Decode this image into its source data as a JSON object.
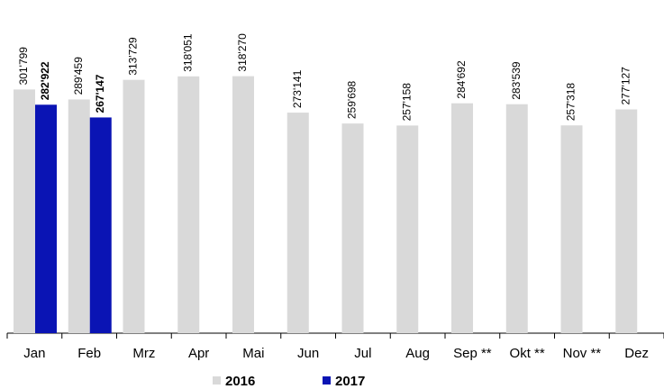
{
  "chart_data": {
    "type": "bar",
    "categories": [
      "Jan",
      "Feb",
      "Mrz",
      "Apr",
      "Mai",
      "Jun",
      "Jul",
      "Aug",
      "Sep **",
      "Okt **",
      "Nov **",
      "Dez"
    ],
    "series": [
      {
        "name": "2016",
        "color": "#d9d9d9",
        "values": [
          301799,
          289459,
          313729,
          318051,
          318270,
          273141,
          259698,
          257158,
          284692,
          283539,
          257318,
          277127
        ],
        "value_labels": [
          "301'799",
          "289'459",
          "313'729",
          "318'051",
          "318'270",
          "273'141",
          "259'698",
          "257'158",
          "284'692",
          "283'539",
          "257'318",
          "277'127"
        ]
      },
      {
        "name": "2017",
        "color": "#0a14b4",
        "values": [
          282922,
          267147,
          null,
          null,
          null,
          null,
          null,
          null,
          null,
          null,
          null,
          null
        ],
        "value_labels": [
          "282'922",
          "267'147",
          null,
          null,
          null,
          null,
          null,
          null,
          null,
          null,
          null,
          null
        ]
      }
    ],
    "ylim": [
      0,
      368000
    ]
  }
}
